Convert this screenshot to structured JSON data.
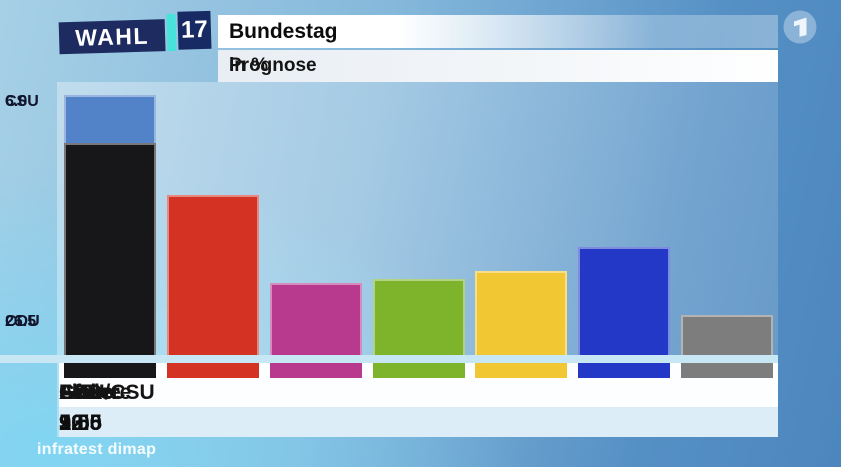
{
  "header": {
    "logo": {
      "word": "WAHL",
      "year": "17"
    },
    "title": "Bundestag",
    "subtitle": "Prognose",
    "unit": "in %"
  },
  "chart_data": {
    "type": "bar",
    "title": "Bundestag",
    "subtitle": "Prognose",
    "unit": "in %",
    "categories": [
      "CDU/CSU",
      "SPD",
      "Linke",
      "Grüne",
      "FDP",
      "AfD",
      "Andere"
    ],
    "values": [
      32.5,
      20.0,
      9.0,
      9.5,
      10.5,
      13.5,
      5.0
    ],
    "value_labels": [
      "32.5",
      "20.0",
      "9.0",
      "9.5",
      "10.5",
      "13.5",
      "5.0"
    ],
    "bar_colors": [
      "#17171a",
      "#d43324",
      "#b73a8e",
      "#7db42c",
      "#f1c833",
      "#2338c6",
      "#7d7d7d"
    ],
    "stacked_first_bar": {
      "category": "CDU/CSU",
      "segments": [
        {
          "label": "CSU",
          "value": 6.0,
          "value_label": "6.0",
          "color": "#5282c8"
        },
        {
          "label": "CDU",
          "value": 26.5,
          "value_label": "26.5",
          "color": "#17171a"
        }
      ]
    },
    "ylim": [
      0,
      34
    ],
    "grid": false,
    "legend_position": "none",
    "source": "infratest dimap"
  },
  "footer": {
    "source": "infratest dimap"
  },
  "colors": {
    "logo_navy": "#1d2b60",
    "logo_year_navy": "#172a63",
    "logo_teal": "#47e2dc",
    "baseline_stripe": "#c8e7f5",
    "name_band": "#fdfeff",
    "value_band": "#dcedf8"
  }
}
